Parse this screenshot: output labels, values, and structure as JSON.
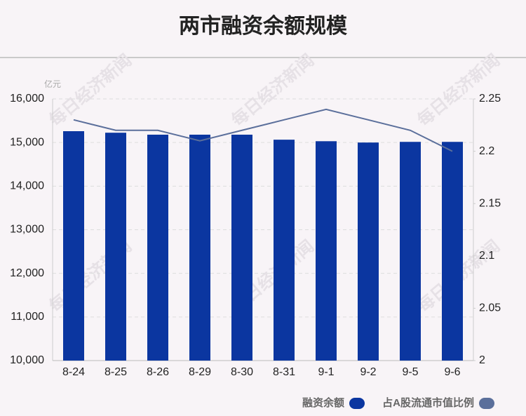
{
  "chart_data": {
    "type": "bar-line",
    "title": "两市融资余额规模",
    "y_unit": "亿元",
    "watermark": "每日经济新闻",
    "categories": [
      "8-24",
      "8-25",
      "8-26",
      "8-29",
      "8-30",
      "8-31",
      "9-1",
      "9-2",
      "9-5",
      "9-6"
    ],
    "series": [
      {
        "name": "融资余额",
        "color": "#0b36a0",
        "type": "bar",
        "values": [
          15260,
          15225,
          15180,
          15180,
          15180,
          15065,
          15030,
          15000,
          15015,
          15015
        ]
      },
      {
        "name": "占A股流通市值比例",
        "color": "#5b6f9b",
        "type": "line",
        "axis": "y2",
        "values": [
          2.23,
          2.22,
          2.22,
          2.21,
          2.22,
          2.23,
          2.24,
          2.23,
          2.22,
          2.2
        ]
      }
    ],
    "ylim": [
      10000,
      16000
    ],
    "yticks": [
      {
        "value": 10000,
        "label": "10,000"
      },
      {
        "value": 11000,
        "label": "11,000"
      },
      {
        "value": 12000,
        "label": "12,000"
      },
      {
        "value": 13000,
        "label": "13,000"
      },
      {
        "value": 14000,
        "label": "14,000"
      },
      {
        "value": 15000,
        "label": "15,000"
      },
      {
        "value": 16000,
        "label": "16,000"
      }
    ],
    "y2lim": [
      2,
      2.25
    ],
    "y2ticks": [
      2,
      2.05,
      2.1,
      2.15,
      2.2,
      2.25
    ],
    "grid": true,
    "legend": "bottom-right"
  }
}
